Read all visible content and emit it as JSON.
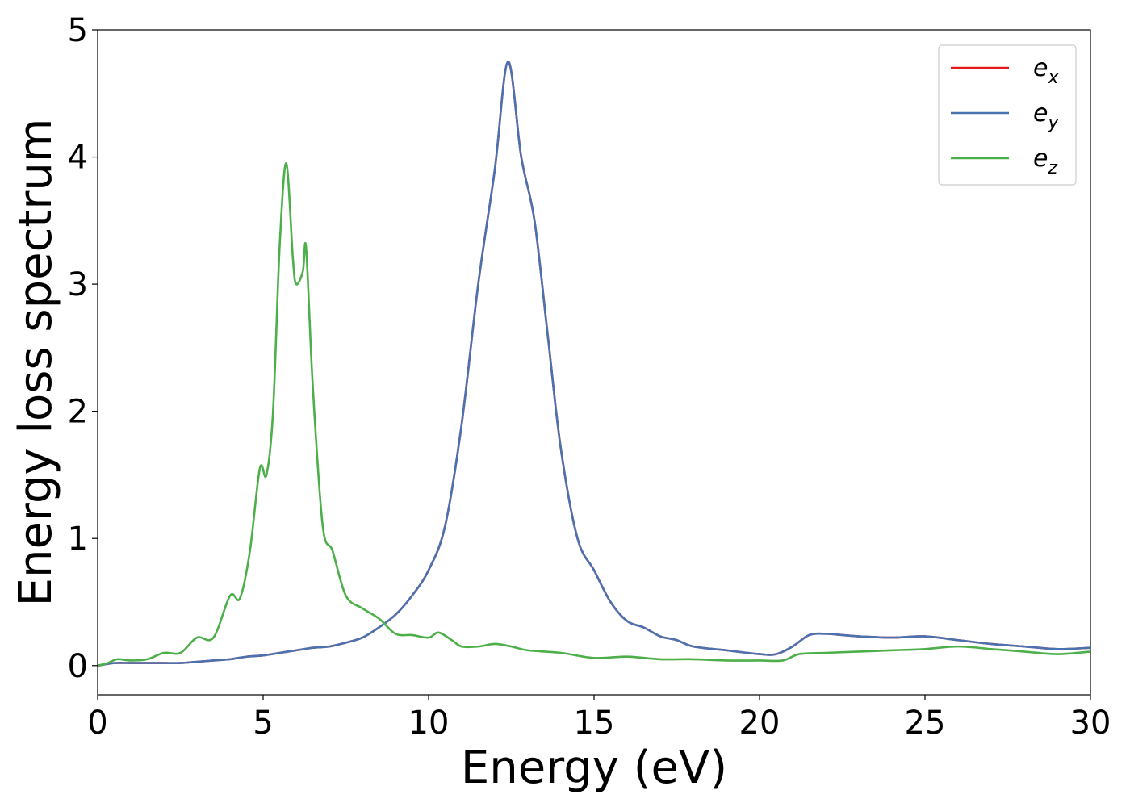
{
  "chart_data": {
    "type": "line",
    "title": "",
    "xlabel": "Energy (eV)",
    "ylabel": "Energy loss spectrum",
    "xlim": [
      0,
      30
    ],
    "ylim": [
      -0.23,
      5
    ],
    "xticks": [
      0,
      5,
      10,
      15,
      20,
      25,
      30
    ],
    "yticks": [
      0,
      1,
      2,
      3,
      4,
      5
    ],
    "grid": false,
    "legend_position": "top-right",
    "series": [
      {
        "name": "e_x",
        "label_main": "e",
        "label_sub": "x",
        "color": "#e41a1c",
        "x": [
          0,
          0.5,
          1,
          1.5,
          2,
          2.5,
          3,
          3.5,
          4,
          4.5,
          5,
          5.5,
          6,
          6.5,
          7,
          7.5,
          8,
          8.5,
          9,
          9.5,
          10,
          10.5,
          11,
          11.5,
          12,
          12.4,
          12.8,
          13.2,
          13.6,
          14,
          14.5,
          15,
          15.5,
          16,
          16.5,
          17,
          17.5,
          18,
          19,
          20,
          20.5,
          21,
          21.5,
          22,
          22.5,
          23,
          24,
          25,
          26,
          27,
          28,
          29,
          30
        ],
        "y": [
          0.0,
          0.02,
          0.02,
          0.02,
          0.02,
          0.02,
          0.03,
          0.04,
          0.05,
          0.07,
          0.08,
          0.1,
          0.12,
          0.14,
          0.15,
          0.18,
          0.22,
          0.3,
          0.4,
          0.55,
          0.75,
          1.1,
          1.9,
          3.0,
          3.9,
          4.75,
          4.0,
          3.5,
          2.6,
          1.7,
          1.0,
          0.75,
          0.5,
          0.35,
          0.3,
          0.23,
          0.2,
          0.15,
          0.12,
          0.09,
          0.09,
          0.15,
          0.24,
          0.25,
          0.24,
          0.23,
          0.22,
          0.23,
          0.2,
          0.17,
          0.15,
          0.13,
          0.14
        ]
      },
      {
        "name": "e_y",
        "label_main": "e",
        "label_sub": "y",
        "color": "#4a72b0",
        "x": [
          0,
          0.5,
          1,
          1.5,
          2,
          2.5,
          3,
          3.5,
          4,
          4.5,
          5,
          5.5,
          6,
          6.5,
          7,
          7.5,
          8,
          8.5,
          9,
          9.5,
          10,
          10.5,
          11,
          11.5,
          12,
          12.4,
          12.8,
          13.2,
          13.6,
          14,
          14.5,
          15,
          15.5,
          16,
          16.5,
          17,
          17.5,
          18,
          19,
          20,
          20.5,
          21,
          21.5,
          22,
          22.5,
          23,
          24,
          25,
          26,
          27,
          28,
          29,
          30
        ],
        "y": [
          0.0,
          0.02,
          0.02,
          0.02,
          0.02,
          0.02,
          0.03,
          0.04,
          0.05,
          0.07,
          0.08,
          0.1,
          0.12,
          0.14,
          0.15,
          0.18,
          0.22,
          0.3,
          0.4,
          0.55,
          0.75,
          1.1,
          1.9,
          3.0,
          3.9,
          4.75,
          4.0,
          3.5,
          2.6,
          1.7,
          1.0,
          0.75,
          0.5,
          0.35,
          0.3,
          0.23,
          0.2,
          0.15,
          0.12,
          0.09,
          0.09,
          0.15,
          0.24,
          0.25,
          0.24,
          0.23,
          0.22,
          0.23,
          0.2,
          0.17,
          0.15,
          0.13,
          0.14
        ]
      },
      {
        "name": "e_z",
        "label_main": "e",
        "label_sub": "z",
        "color": "#4daf4a",
        "x": [
          0,
          0.3,
          0.6,
          1,
          1.5,
          2,
          2.5,
          3,
          3.5,
          4,
          4.3,
          4.6,
          4.9,
          5.1,
          5.3,
          5.5,
          5.7,
          5.9,
          6.0,
          6.2,
          6.3,
          6.5,
          6.8,
          7.1,
          7.5,
          8,
          8.5,
          9,
          9.5,
          10,
          10.3,
          10.7,
          11,
          11.5,
          12,
          12.5,
          13,
          14,
          15,
          16,
          17,
          18,
          19,
          20,
          20.7,
          21.2,
          22,
          23,
          24,
          25,
          26,
          27,
          28,
          29,
          30
        ],
        "y": [
          0.0,
          0.02,
          0.05,
          0.04,
          0.05,
          0.1,
          0.1,
          0.22,
          0.22,
          0.55,
          0.53,
          0.9,
          1.55,
          1.5,
          2.0,
          3.3,
          3.95,
          3.2,
          3.0,
          3.1,
          3.28,
          2.2,
          1.1,
          0.9,
          0.55,
          0.45,
          0.37,
          0.25,
          0.24,
          0.22,
          0.26,
          0.2,
          0.15,
          0.15,
          0.17,
          0.15,
          0.12,
          0.1,
          0.06,
          0.07,
          0.05,
          0.05,
          0.04,
          0.04,
          0.04,
          0.09,
          0.1,
          0.11,
          0.12,
          0.13,
          0.15,
          0.13,
          0.11,
          0.09,
          0.11
        ]
      }
    ]
  }
}
